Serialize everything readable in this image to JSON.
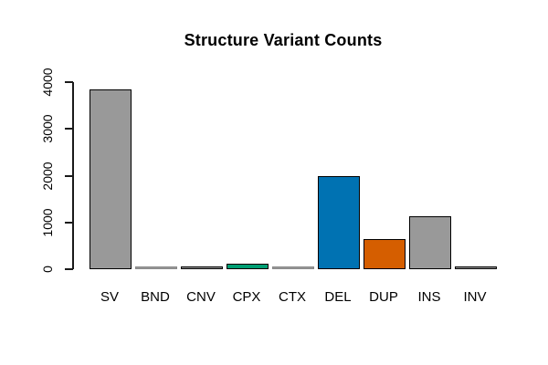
{
  "figure": {
    "background": "#ffffff"
  },
  "chart_data": {
    "type": "bar",
    "title": "Structure Variant Counts",
    "categories": [
      "SV",
      "BND",
      "CNV",
      "CPX",
      "CTX",
      "DEL",
      "DUP",
      "INS",
      "INV"
    ],
    "values": [
      3800,
      5,
      25,
      75,
      5,
      1950,
      600,
      1090,
      15
    ],
    "bar_colors": [
      "#999999",
      "#999999",
      "#999999",
      "#009E73",
      "#999999",
      "#0072B2",
      "#D55E00",
      "#999999",
      "#999999"
    ],
    "bar_borders": [
      "#000000",
      "#888888",
      "#000000",
      "#000000",
      "#888888",
      "#000000",
      "#000000",
      "#000000",
      "#000000"
    ],
    "xlabel": "",
    "ylabel": "",
    "ylim": [
      0,
      4000
    ],
    "yticks": [
      0,
      1000,
      2000,
      3000,
      4000
    ],
    "ytick_labels": [
      "0",
      "1000",
      "2000",
      "3000",
      "4000"
    ],
    "grid": false,
    "legend_position": "none",
    "axis_color": "#000000",
    "text_color": "#000000"
  }
}
